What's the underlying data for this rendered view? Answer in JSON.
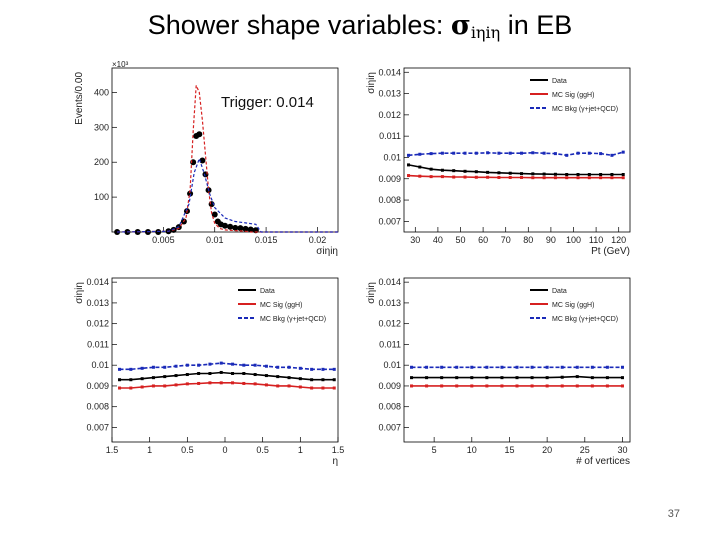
{
  "slide": {
    "title_prefix": "Shower shape variables: ",
    "title_symbol": "σ",
    "title_subscript": "iηiη",
    "title_suffix": " in EB",
    "trigger_note": "Trigger: 0.014",
    "page_number": "37"
  },
  "colors": {
    "data": "#000000",
    "sig": "#d62020",
    "bkg": "#1a2ab8"
  },
  "chart_data": [
    {
      "id": "hist-sieie",
      "type": "histogram",
      "title": "",
      "xlabel": "σiηiη",
      "ylabel": "Events/0.00",
      "y_exponent": "×10³",
      "xlim": [
        0.0,
        0.022
      ],
      "ylim": [
        0,
        470
      ],
      "xticks": [
        0.005,
        0.01,
        0.015,
        0.02
      ],
      "xtick_labels": [
        "0.005",
        "0.01",
        "0.015",
        "0.02"
      ],
      "yticks": [
        100,
        200,
        300,
        400
      ],
      "ytick_labels": [
        "100",
        "200",
        "300",
        "400"
      ],
      "series": [
        {
          "name": "Data",
          "style": "points",
          "x": [
            0.0005,
            0.0015,
            0.0025,
            0.0035,
            0.0045,
            0.0055,
            0.006,
            0.0065,
            0.007,
            0.0073,
            0.0076,
            0.0079,
            0.0082,
            0.0085,
            0.0088,
            0.0091,
            0.0094,
            0.0097,
            0.01,
            0.0103,
            0.0106,
            0.011,
            0.0115,
            0.012,
            0.0125,
            0.013,
            0.0135,
            0.014
          ],
          "y": [
            0,
            0,
            0,
            0,
            0,
            2,
            6,
            14,
            30,
            60,
            110,
            200,
            275,
            280,
            205,
            165,
            120,
            80,
            50,
            30,
            22,
            18,
            15,
            12,
            11,
            9,
            7,
            5
          ]
        },
        {
          "name": "MC Sig (ggH)",
          "style": "dashed",
          "x": [
            0.0005,
            0.0055,
            0.0065,
            0.0072,
            0.0076,
            0.0079,
            0.0082,
            0.0085,
            0.0088,
            0.0091,
            0.0094,
            0.0097,
            0.01,
            0.0105,
            0.011,
            0.012,
            0.013,
            0.0135,
            0.022
          ],
          "y": [
            0,
            2,
            10,
            40,
            120,
            290,
            420,
            400,
            320,
            220,
            120,
            55,
            25,
            10,
            6,
            4,
            2,
            0,
            0
          ]
        },
        {
          "name": "MC Bkg (γ+jet+QCD)",
          "style": "dashed",
          "x": [
            0.0005,
            0.0055,
            0.0065,
            0.0075,
            0.008,
            0.0085,
            0.009,
            0.0095,
            0.01,
            0.011,
            0.012,
            0.013,
            0.014,
            0.0145,
            0.022
          ],
          "y": [
            0,
            2,
            15,
            80,
            170,
            210,
            165,
            110,
            70,
            40,
            30,
            26,
            22,
            0,
            0
          ]
        }
      ]
    },
    {
      "id": "vs-pt",
      "type": "profile",
      "xlabel": "Pt (GeV)",
      "ylabel": "σiηiη",
      "xlim": [
        25,
        125
      ],
      "ylim": [
        0.0065,
        0.0142
      ],
      "xticks": [
        30,
        40,
        50,
        60,
        70,
        80,
        90,
        100,
        110,
        120
      ],
      "xtick_labels": [
        "30",
        "40",
        "50",
        "60",
        "70",
        "80",
        "90",
        "100",
        "110",
        "120"
      ],
      "yticks": [
        0.007,
        0.008,
        0.009,
        0.01,
        0.011,
        0.012,
        0.013,
        0.014
      ],
      "ytick_labels": [
        "0.007",
        "0.008",
        "0.009",
        "0.01",
        "0.011",
        "0.012",
        "0.013",
        "0.014"
      ],
      "legend": [
        "Data",
        "MC Sig (ggH)",
        "MC Bkg (γ+jet+QCD)"
      ],
      "series": [
        {
          "name": "Data",
          "x": [
            27,
            32,
            37,
            42,
            47,
            52,
            57,
            62,
            67,
            72,
            77,
            82,
            87,
            92,
            97,
            102,
            107,
            112,
            117,
            122
          ],
          "y": [
            0.00965,
            0.00955,
            0.00945,
            0.0094,
            0.00938,
            0.00935,
            0.00933,
            0.0093,
            0.00928,
            0.00926,
            0.00924,
            0.00923,
            0.00922,
            0.00921,
            0.0092,
            0.0092,
            0.0092,
            0.0092,
            0.0092,
            0.0092
          ]
        },
        {
          "name": "MC Sig (ggH)",
          "x": [
            27,
            32,
            37,
            42,
            47,
            52,
            57,
            62,
            67,
            72,
            77,
            82,
            87,
            92,
            97,
            102,
            107,
            112,
            117,
            122
          ],
          "y": [
            0.00915,
            0.00912,
            0.0091,
            0.0091,
            0.00908,
            0.00908,
            0.00907,
            0.00907,
            0.00906,
            0.00906,
            0.00906,
            0.00905,
            0.00905,
            0.00905,
            0.00905,
            0.00905,
            0.00905,
            0.00905,
            0.00905,
            0.00905
          ]
        },
        {
          "name": "MC Bkg (γ+jet+QCD)",
          "x": [
            27,
            32,
            37,
            42,
            47,
            52,
            57,
            62,
            67,
            72,
            77,
            82,
            87,
            92,
            97,
            102,
            107,
            112,
            117,
            122
          ],
          "y": [
            0.0101,
            0.01015,
            0.01018,
            0.0102,
            0.0102,
            0.0102,
            0.0102,
            0.01022,
            0.0102,
            0.0102,
            0.0102,
            0.01022,
            0.0102,
            0.01018,
            0.0101,
            0.0102,
            0.0102,
            0.01018,
            0.0101,
            0.01025
          ]
        }
      ]
    },
    {
      "id": "vs-eta",
      "type": "profile",
      "xlabel": "η",
      "ylabel": "σiηiη",
      "xlim": [
        -1.5,
        1.5
      ],
      "ylim": [
        0.0063,
        0.0142
      ],
      "xticks": [
        -1.5,
        -1,
        -0.5,
        0,
        0.5,
        1,
        1.5
      ],
      "xtick_labels": [
        "1.5",
        "1",
        "0.5",
        "0",
        "0.5",
        "1",
        "1.5"
      ],
      "yticks": [
        0.007,
        0.008,
        0.009,
        0.01,
        0.011,
        0.012,
        0.013,
        0.014
      ],
      "ytick_labels": [
        "0.007",
        "0.008",
        "0.009",
        "0.01",
        "0.011",
        "0.012",
        "0.013",
        "0.014"
      ],
      "legend": [
        "Data",
        "MC Sig (ggH)",
        "MC Bkg (γ+jet+QCD)"
      ],
      "series": [
        {
          "name": "Data",
          "x": [
            -1.4,
            -1.25,
            -1.1,
            -0.95,
            -0.8,
            -0.65,
            -0.5,
            -0.35,
            -0.2,
            -0.05,
            0.1,
            0.25,
            0.4,
            0.55,
            0.7,
            0.85,
            1.0,
            1.15,
            1.3,
            1.45
          ],
          "y": [
            0.0093,
            0.0093,
            0.00935,
            0.0094,
            0.00945,
            0.0095,
            0.00955,
            0.0096,
            0.0096,
            0.00965,
            0.0096,
            0.0096,
            0.00955,
            0.0095,
            0.00945,
            0.0094,
            0.00935,
            0.0093,
            0.0093,
            0.0093
          ]
        },
        {
          "name": "MC Sig (ggH)",
          "x": [
            -1.4,
            -1.25,
            -1.1,
            -0.95,
            -0.8,
            -0.65,
            -0.5,
            -0.35,
            -0.2,
            -0.05,
            0.1,
            0.25,
            0.4,
            0.55,
            0.7,
            0.85,
            1.0,
            1.15,
            1.3,
            1.45
          ],
          "y": [
            0.0089,
            0.0089,
            0.00895,
            0.009,
            0.009,
            0.00905,
            0.0091,
            0.00912,
            0.00915,
            0.00915,
            0.00915,
            0.00912,
            0.0091,
            0.00905,
            0.009,
            0.009,
            0.00895,
            0.0089,
            0.0089,
            0.0089
          ]
        },
        {
          "name": "MC Bkg (γ+jet+QCD)",
          "x": [
            -1.4,
            -1.25,
            -1.1,
            -0.95,
            -0.8,
            -0.65,
            -0.5,
            -0.35,
            -0.2,
            -0.05,
            0.1,
            0.25,
            0.4,
            0.55,
            0.7,
            0.85,
            1.0,
            1.15,
            1.3,
            1.45
          ],
          "y": [
            0.0098,
            0.0098,
            0.00985,
            0.0099,
            0.0099,
            0.00995,
            0.01,
            0.01,
            0.01005,
            0.0101,
            0.01005,
            0.01,
            0.01,
            0.00995,
            0.0099,
            0.0099,
            0.00985,
            0.0098,
            0.0098,
            0.0098
          ]
        }
      ]
    },
    {
      "id": "vs-nvtx",
      "type": "profile",
      "xlabel": "# of vertices",
      "ylabel": "σiηiη",
      "xlim": [
        1,
        31
      ],
      "ylim": [
        0.0063,
        0.0142
      ],
      "xticks": [
        5,
        10,
        15,
        20,
        25,
        30
      ],
      "xtick_labels": [
        "5",
        "10",
        "15",
        "20",
        "25",
        "30"
      ],
      "yticks": [
        0.007,
        0.008,
        0.009,
        0.01,
        0.011,
        0.012,
        0.013,
        0.014
      ],
      "ytick_labels": [
        "0.007",
        "0.008",
        "0.009",
        "0.01",
        "0.011",
        "0.012",
        "0.013",
        "0.014"
      ],
      "legend": [
        "Data",
        "MC Sig (ggH)",
        "MC Bkg (γ+jet+QCD)"
      ],
      "series": [
        {
          "name": "Data",
          "x": [
            2,
            4,
            6,
            8,
            10,
            12,
            14,
            16,
            18,
            20,
            22,
            24,
            26,
            28,
            30
          ],
          "y": [
            0.0094,
            0.0094,
            0.0094,
            0.0094,
            0.0094,
            0.0094,
            0.0094,
            0.0094,
            0.0094,
            0.0094,
            0.00942,
            0.00945,
            0.0094,
            0.0094,
            0.0094
          ]
        },
        {
          "name": "MC Sig (ggH)",
          "x": [
            2,
            4,
            6,
            8,
            10,
            12,
            14,
            16,
            18,
            20,
            22,
            24,
            26,
            28,
            30
          ],
          "y": [
            0.009,
            0.009,
            0.009,
            0.009,
            0.009,
            0.009,
            0.009,
            0.009,
            0.009,
            0.009,
            0.009,
            0.009,
            0.009,
            0.009,
            0.009
          ]
        },
        {
          "name": "MC Bkg (γ+jet+QCD)",
          "x": [
            2,
            4,
            6,
            8,
            10,
            12,
            14,
            16,
            18,
            20,
            22,
            24,
            26,
            28,
            30
          ],
          "y": [
            0.0099,
            0.0099,
            0.0099,
            0.0099,
            0.0099,
            0.0099,
            0.0099,
            0.0099,
            0.0099,
            0.0099,
            0.0099,
            0.0099,
            0.0099,
            0.0099,
            0.0099
          ]
        }
      ]
    }
  ]
}
